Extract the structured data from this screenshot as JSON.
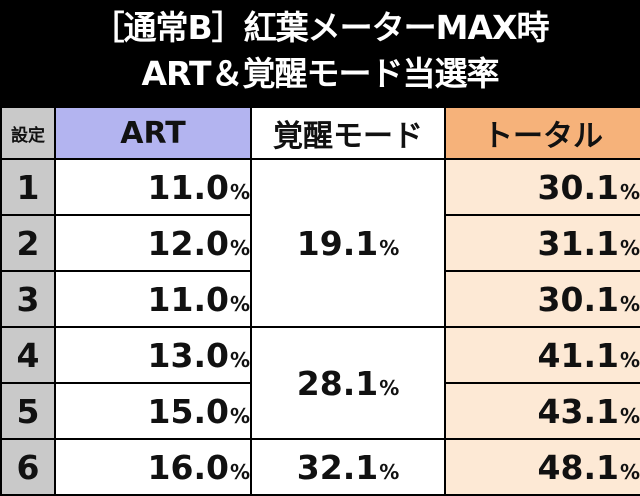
{
  "title": {
    "line1": "［通常B］紅葉メーターMAX時",
    "line2": "ART＆覚醒モード当選率"
  },
  "table": {
    "headers": {
      "setting": "設定",
      "art": "ART",
      "kakusei": "覚醒モード",
      "total": "トータル"
    },
    "percent_sign": "%",
    "rows": [
      {
        "setting": "1",
        "art": "11.0",
        "total": "30.1"
      },
      {
        "setting": "2",
        "art": "12.0",
        "total": "31.1"
      },
      {
        "setting": "3",
        "art": "11.0",
        "total": "30.1"
      },
      {
        "setting": "4",
        "art": "13.0",
        "total": "41.1"
      },
      {
        "setting": "5",
        "art": "15.0",
        "total": "43.1"
      },
      {
        "setting": "6",
        "art": "16.0",
        "total": "48.1"
      }
    ],
    "kakusei_groups": [
      {
        "settings": "1-3",
        "value": "19.1"
      },
      {
        "settings": "4-5",
        "value": "28.1"
      },
      {
        "settings": "6",
        "value": "32.1"
      }
    ]
  },
  "colors": {
    "background": "#000000",
    "setting_column": "#c9c9c9",
    "art_header": "#b3b4f0",
    "total_header": "#f6b27a",
    "total_cells": "#fde9d5"
  }
}
